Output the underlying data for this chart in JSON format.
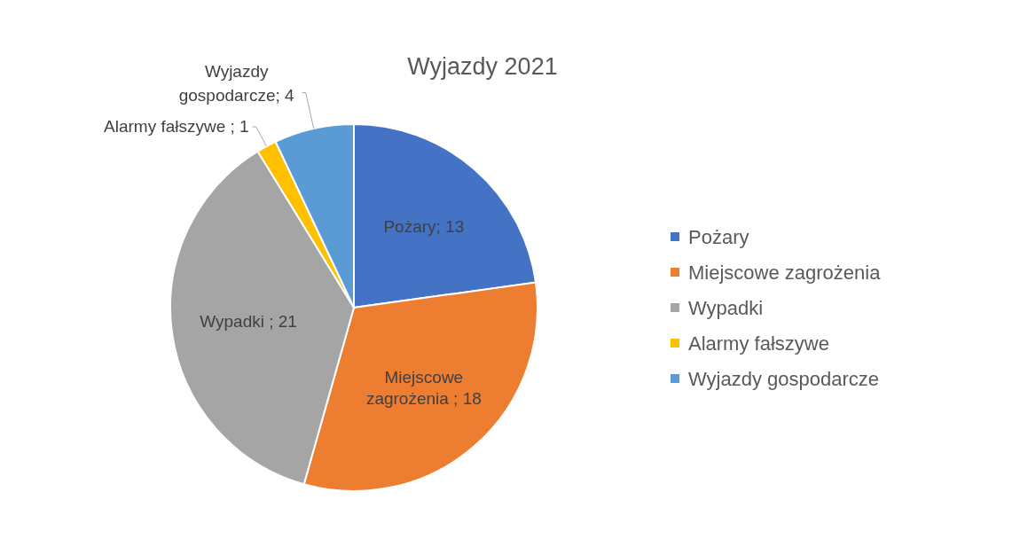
{
  "chart_data": {
    "type": "pie",
    "title": "Wyjazdy 2021",
    "categories": [
      "Pożary",
      "Miejscowe zagrożenia",
      "Wypadki",
      "Alarmy fałszywe",
      "Wyjazdy gospodarcze"
    ],
    "values": [
      13,
      18,
      21,
      1,
      4
    ],
    "colors": [
      "#4472c4",
      "#ed7d31",
      "#a5a5a5",
      "#ffc000",
      "#5b9bd5"
    ],
    "value_labels": [
      "Pożary; 13",
      "Miejscowe zagrożenia ; 18",
      "Wypadki ; 21",
      "Alarmy fałszywe ; 1",
      "Wyjazdy gospodarcze; 4"
    ],
    "legend": "right"
  }
}
